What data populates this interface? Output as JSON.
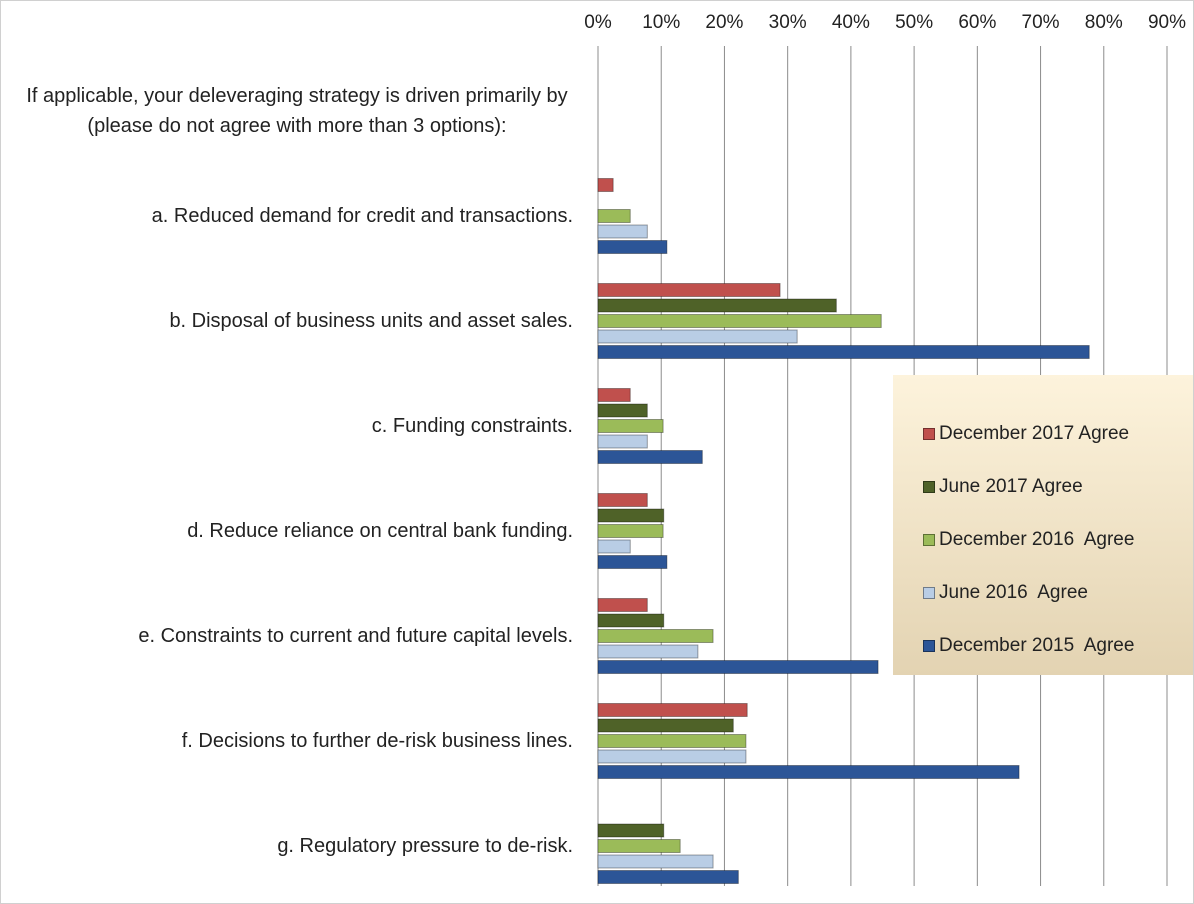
{
  "chart_data": {
    "type": "barh",
    "categories": [
      "If applicable, your deleveraging strategy is driven primarily by (please do not agree with more than 3 options):",
      "a. Reduced demand for credit and transactions.",
      "b. Disposal of business units and asset sales.",
      "c. Funding constraints.",
      "d. Reduce reliance on central bank funding.",
      "e. Constraints to current and future capital levels.",
      "f. Decisions to further de-risk business lines.",
      "g. Regulatory pressure to de-risk."
    ],
    "series": [
      {
        "name": "December 2017 Agree",
        "color": "#c0504d",
        "values": [
          null,
          2.4,
          28.8,
          5.1,
          7.8,
          7.8,
          23.6,
          null
        ]
      },
      {
        "name": "June 2017 Agree",
        "color": "#4f6228",
        "values": [
          null,
          null,
          37.7,
          7.8,
          10.4,
          10.4,
          21.4,
          10.4
        ]
      },
      {
        "name": "December 2016  Agree",
        "color": "#9bbb59",
        "values": [
          null,
          5.1,
          44.8,
          10.3,
          10.3,
          18.2,
          23.4,
          13.0
        ]
      },
      {
        "name": "June 2016  Agree",
        "color": "#b9cde5",
        "values": [
          null,
          7.8,
          31.5,
          7.8,
          5.1,
          15.8,
          23.4,
          18.2
        ]
      },
      {
        "name": "December 2015  Agree",
        "color": "#2c5597",
        "values": [
          null,
          10.9,
          77.7,
          16.5,
          10.9,
          44.3,
          66.6,
          22.2
        ]
      }
    ],
    "xlim": [
      0,
      90
    ],
    "xticks": [
      {
        "value": 0,
        "label": "0%"
      },
      {
        "value": 10,
        "label": "10%"
      },
      {
        "value": 20,
        "label": "20%"
      },
      {
        "value": 30,
        "label": "30%"
      },
      {
        "value": 40,
        "label": "40%"
      },
      {
        "value": 50,
        "label": "50%"
      },
      {
        "value": 60,
        "label": "60%"
      },
      {
        "value": 70,
        "label": "70%"
      },
      {
        "value": 80,
        "label": "80%"
      },
      {
        "value": 90,
        "label": "90%"
      }
    ],
    "grid": true,
    "legend": "right"
  }
}
